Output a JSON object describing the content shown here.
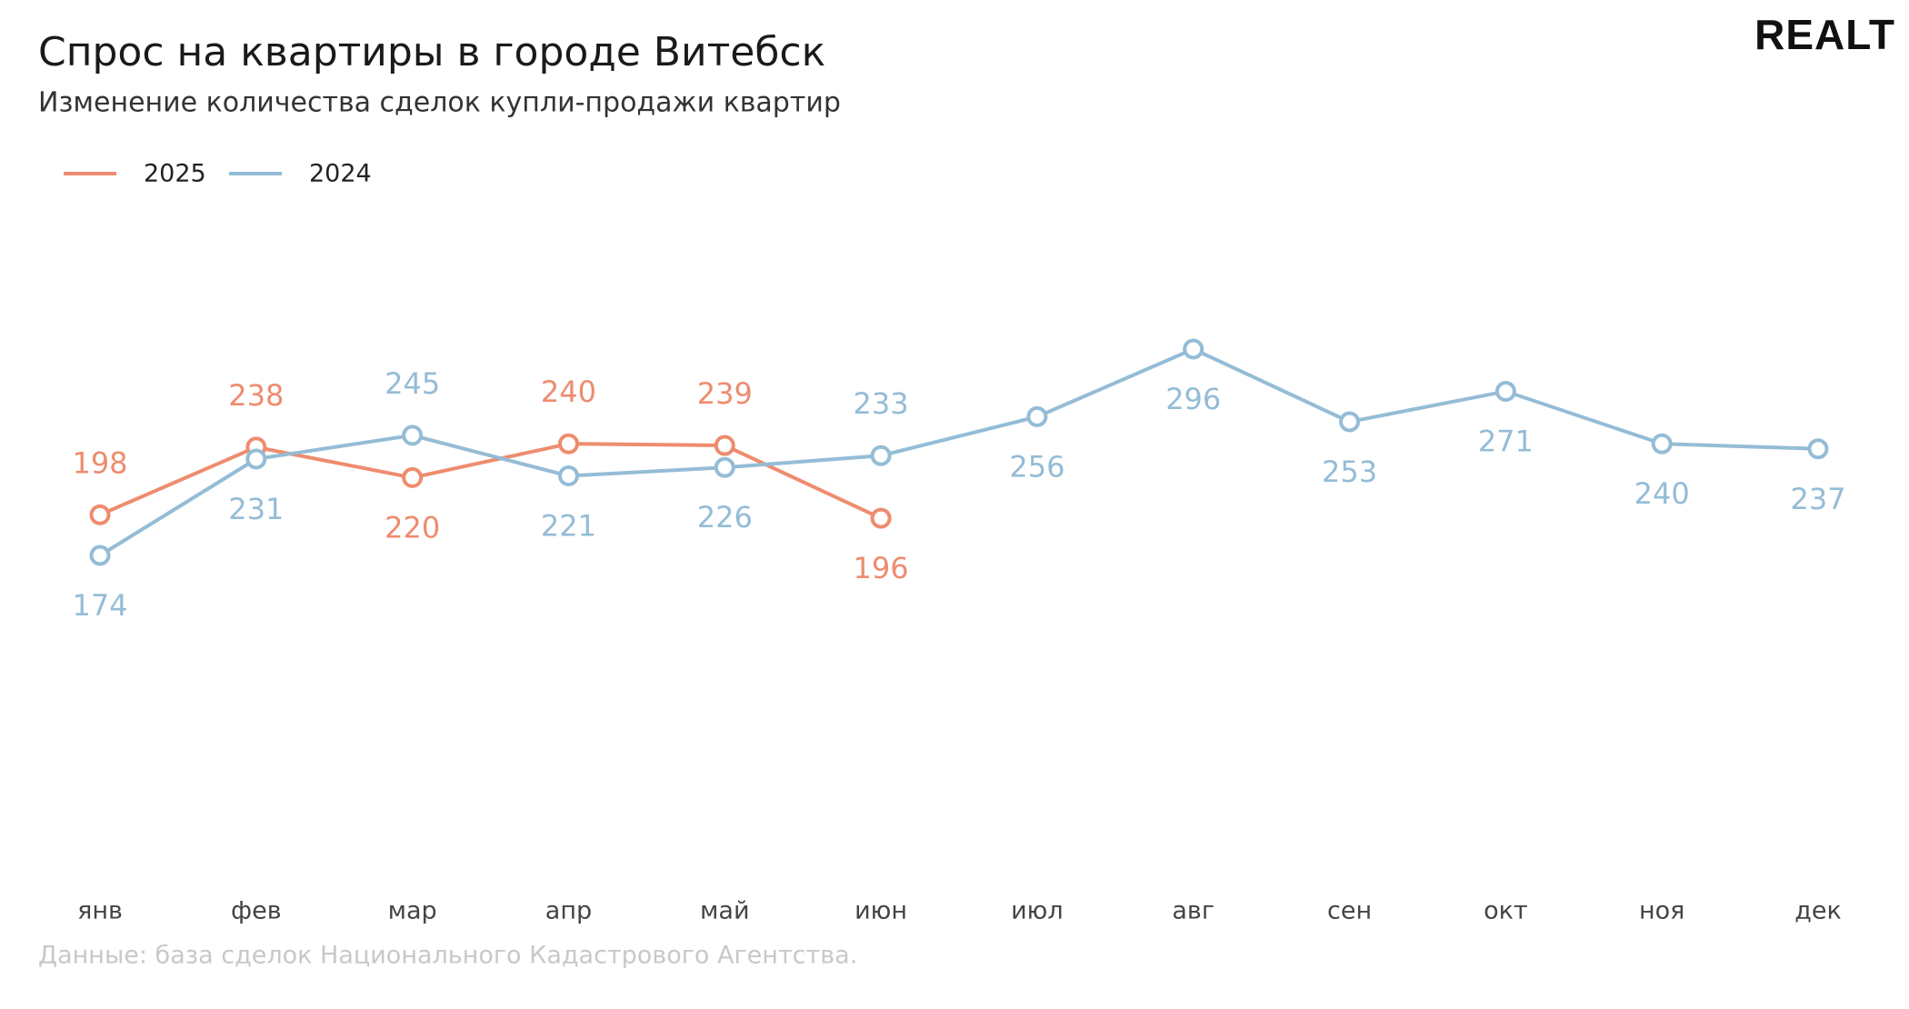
{
  "brand": "REALT",
  "chart_data": {
    "type": "line",
    "title": "Спрос на квартиры в городе Витебск",
    "subtitle": "Изменение количества сделок купли-продажи квартир",
    "source": "Данные: база сделок Национального Кадастрового Агентства.",
    "categories": [
      "янв",
      "фев",
      "мар",
      "апр",
      "май",
      "июн",
      "июл",
      "авг",
      "сен",
      "окт",
      "ноя",
      "дек"
    ],
    "series": [
      {
        "name": "2025",
        "color": "#ee8c6e",
        "values": [
          198,
          238,
          220,
          240,
          239,
          196,
          null,
          null,
          null,
          null,
          null,
          null
        ]
      },
      {
        "name": "2024",
        "color": "#94bcd6",
        "values": [
          174,
          231,
          245,
          221,
          226,
          233,
          256,
          296,
          253,
          271,
          240,
          237
        ]
      }
    ]
  }
}
